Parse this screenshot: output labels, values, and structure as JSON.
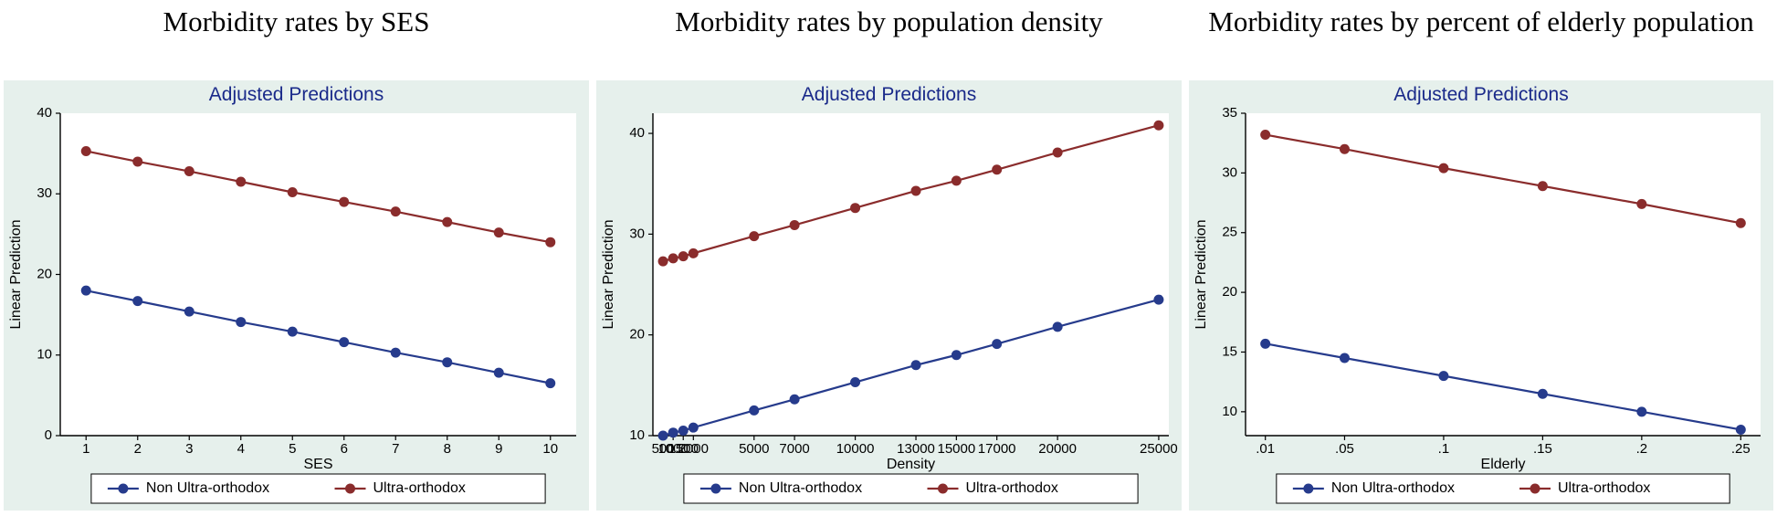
{
  "colors": {
    "background": "#e6f0ec",
    "plot_bg": "#ffffff",
    "axis": "#000000",
    "tick": "#000000",
    "tick_font": "#000000",
    "subtitle": "#1a2a8a",
    "series_non": "#263b8c",
    "series_ultra": "#8a2c2c",
    "legend_border": "#000000",
    "legend_bg": "#ffffff"
  },
  "fonts": {
    "title_family": "Times New Roman",
    "subtitle_size": 21,
    "axis_label_size": 16,
    "tick_size": 15,
    "legend_size": 16
  },
  "marker": {
    "radius": 5.5,
    "line_width": 2.2
  },
  "legend": {
    "items": [
      {
        "label": "Non Ultra-orthodox",
        "color_key": "series_non"
      },
      {
        "label": "Ultra-orthodox",
        "color_key": "series_ultra"
      }
    ]
  },
  "panels": [
    {
      "title": "Morbidity rates by SES",
      "subtitle": "Adjusted Predictions",
      "xlabel": "SES",
      "ylabel": "Linear Prediction",
      "ylim": [
        0,
        40
      ],
      "ytick_step": 10,
      "x_ticks": [
        1,
        2,
        3,
        4,
        5,
        6,
        7,
        8,
        9,
        10
      ],
      "x_positions": [
        1,
        2,
        3,
        4,
        5,
        6,
        7,
        8,
        9,
        10
      ],
      "xlim": [
        0.5,
        10.5
      ],
      "series": [
        {
          "key": "series_non",
          "y": [
            18.0,
            16.7,
            15.4,
            14.1,
            12.9,
            11.6,
            10.3,
            9.1,
            7.8,
            6.5
          ]
        },
        {
          "key": "series_ultra",
          "y": [
            35.3,
            34.0,
            32.8,
            31.5,
            30.2,
            29.0,
            27.8,
            26.5,
            25.2,
            24.0
          ]
        }
      ]
    },
    {
      "title": "Morbidity rates by population density",
      "subtitle": "Adjusted Predictions",
      "xlabel": "Density",
      "ylabel": "Linear Prediction",
      "ylim": [
        10,
        42
      ],
      "ytick_step": 10,
      "ytick_start": 10,
      "y_ticks": [
        10,
        20,
        30,
        40
      ],
      "x_ticks": [
        500,
        1000,
        1500,
        2000,
        5000,
        7000,
        10000,
        13000,
        15000,
        17000,
        20000,
        25000
      ],
      "x_tick_labels": [
        "500",
        "1000",
        "1500",
        "2000",
        "5000",
        "7000",
        "10000",
        "13000",
        "15000",
        "17000",
        "20000",
        "25000"
      ],
      "x_positions": [
        500,
        1000,
        1500,
        2000,
        5000,
        7000,
        10000,
        13000,
        15000,
        17000,
        20000,
        25000
      ],
      "xlim": [
        0,
        25500
      ],
      "series": [
        {
          "key": "series_non",
          "y": [
            10.0,
            10.3,
            10.5,
            10.8,
            12.5,
            13.6,
            15.3,
            17.0,
            18.0,
            19.1,
            20.8,
            23.5
          ]
        },
        {
          "key": "series_ultra",
          "y": [
            27.3,
            27.6,
            27.8,
            28.1,
            29.8,
            30.9,
            32.6,
            34.3,
            35.3,
            36.4,
            38.1,
            40.8
          ]
        }
      ]
    },
    {
      "title": "Morbidity rates by percent of elderly population",
      "subtitle": "Adjusted Predictions",
      "xlabel": "Elderly",
      "ylabel": "Linear Prediction",
      "ylim": [
        8,
        35
      ],
      "y_ticks": [
        10,
        15,
        20,
        25,
        30,
        35
      ],
      "x_ticks": [
        0.01,
        0.05,
        0.1,
        0.15,
        0.2,
        0.25
      ],
      "x_tick_labels": [
        ".01",
        ".05",
        ".1",
        ".15",
        ".2",
        ".25"
      ],
      "x_positions": [
        0.01,
        0.05,
        0.1,
        0.15,
        0.2,
        0.25
      ],
      "xlim": [
        0,
        0.26
      ],
      "series": [
        {
          "key": "series_non",
          "y": [
            15.7,
            14.5,
            13.0,
            11.5,
            10.0,
            8.5
          ]
        },
        {
          "key": "series_ultra",
          "y": [
            33.2,
            32.0,
            30.4,
            28.9,
            27.4,
            25.8
          ]
        }
      ]
    }
  ]
}
